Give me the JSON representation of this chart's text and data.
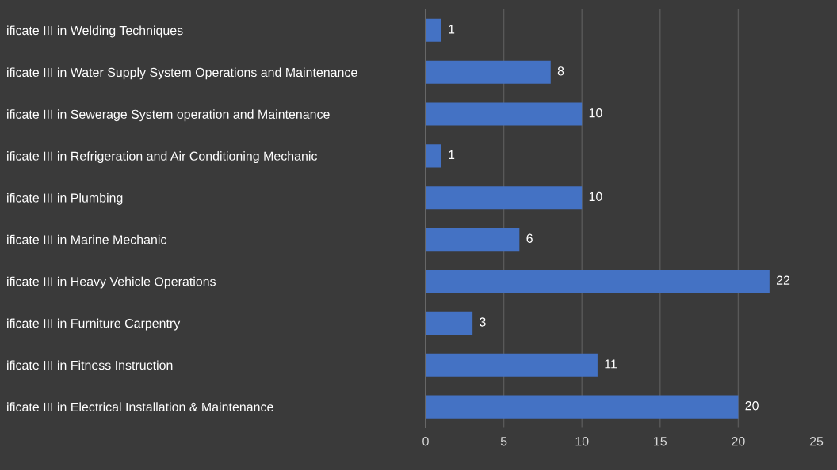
{
  "chart_data": {
    "type": "bar",
    "orientation": "horizontal",
    "categories": [
      "ificate III in Welding Techniques",
      "ificate III in Water Supply System Operations and Maintenance",
      "ificate III in Sewerage System operation and Maintenance",
      "ificate III in Refrigeration and Air Conditioning Mechanic",
      "ificate III in Plumbing",
      "ificate III in Marine Mechanic",
      "ificate III in Heavy Vehicle Operations",
      "ificate III in Furniture Carpentry",
      "ificate III in Fitness Instruction",
      "ificate III in Electrical Installation & Maintenance"
    ],
    "values": [
      1,
      8,
      10,
      1,
      10,
      6,
      22,
      3,
      11,
      20
    ],
    "color": "#4472c4",
    "xlim": [
      0,
      25
    ],
    "xticks": [
      0,
      5,
      10,
      15,
      20,
      25
    ],
    "grid": "x",
    "data_labels": true
  }
}
